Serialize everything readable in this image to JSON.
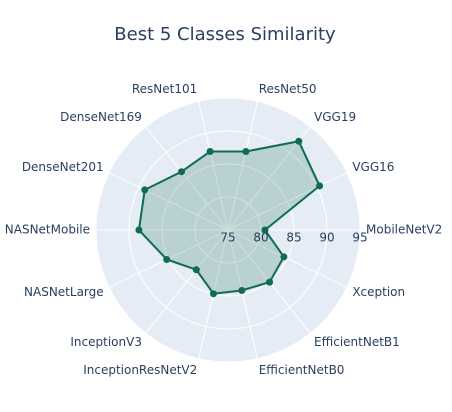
{
  "chart_data": {
    "type": "radar",
    "title": "Best 5 Classes Similarity",
    "categories": [
      "MobileNetV2",
      "VGG16",
      "VGG19",
      "ResNet50",
      "ResNet101",
      "DenseNet169",
      "DenseNet201",
      "NASNetMobile",
      "NASNetLarge",
      "InceptionV3",
      "InceptionResNetV2",
      "EfficientNetB0",
      "EfficientNetB1",
      "Xception"
    ],
    "values": [
      80.6,
      90.4,
      92.2,
      87.2,
      87.2,
      86.3,
      89.0,
      88.5,
      85.3,
      82.7,
      84.9,
      84.4,
      85.1,
      84.4
    ],
    "color": "#0f6b52",
    "rlim": [
      75,
      95
    ],
    "rticks": [
      75,
      80,
      85,
      90,
      95
    ],
    "grid": true
  }
}
